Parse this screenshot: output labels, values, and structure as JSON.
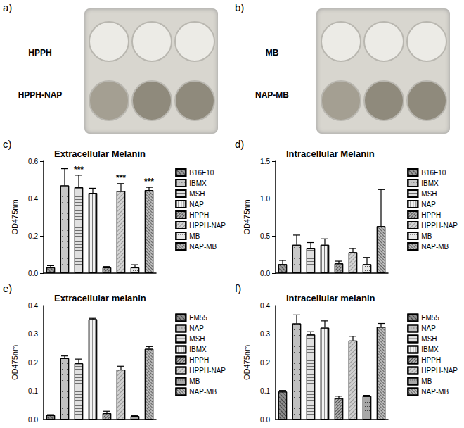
{
  "photos": [
    {
      "panel": "a)",
      "labels": [
        "HPPH",
        "HPPH-NAP"
      ]
    },
    {
      "panel": "b)",
      "labels": [
        "MB",
        "NAP-MB"
      ]
    }
  ],
  "chart_data": [
    {
      "panel": "c)",
      "type": "bar",
      "title": "Extracellular Melanin",
      "y_label": "OD475nm",
      "categories": [
        "B16F10",
        "IBMX",
        "MSH",
        "NAP",
        "HPPH",
        "HPPH-NAP",
        "MB",
        "NAP-MB"
      ],
      "values": [
        0.03,
        0.47,
        0.46,
        0.43,
        0.03,
        0.44,
        0.03,
        0.445
      ],
      "errors": [
        0.01,
        0.09,
        0.065,
        0.025,
        0.005,
        0.04,
        0.015,
        0.015
      ],
      "colors": [
        "#9a9a9a",
        "#c8c8c8",
        "#e0e0e0",
        "#f2f2f2",
        "#b0b0b0",
        "#d4d4d4",
        "#e8e8e8",
        "#bcbcbc"
      ],
      "ylim": [
        0,
        0.6
      ],
      "yticks": [
        {
          "value": 0,
          "label": "0.0"
        },
        0.2,
        0.4,
        0.6
      ],
      "tick_labels": "y",
      "legend": "right",
      "annotations": [
        {
          "category": "MSH",
          "text": "***"
        },
        {
          "category": "HPPH-NAP",
          "text": "***"
        },
        {
          "category": "NAP-MB",
          "text": "***"
        }
      ]
    },
    {
      "panel": "d)",
      "type": "bar",
      "title": "Intracellular Melanin",
      "y_label": "OD475nm",
      "categories": [
        "B16F10",
        "IBMX",
        "MSH",
        "NAP",
        "HPPH",
        "HPPH-NAP",
        "MB",
        "NAP-MB"
      ],
      "values": [
        0.12,
        0.38,
        0.33,
        0.38,
        0.13,
        0.28,
        0.12,
        0.63
      ],
      "errors": [
        0.05,
        0.13,
        0.08,
        0.08,
        0.03,
        0.05,
        0.09,
        0.49
      ],
      "colors": [
        "#9a9a9a",
        "#c8c8c8",
        "#e0e0e0",
        "#f2f2f2",
        "#b0b0b0",
        "#d4d4d4",
        "#e8e8e8",
        "#bcbcbc"
      ],
      "ylim": [
        0,
        1.5
      ],
      "yticks": [
        {
          "value": 0,
          "label": "0.0"
        },
        0.5,
        {
          "value": 1,
          "label": "1.0"
        },
        1.5
      ],
      "tick_labels": "y",
      "legend": "right"
    },
    {
      "panel": "e)",
      "type": "bar",
      "title": "Extracellular melanin",
      "y_label": "OD475nm",
      "categories": [
        "FM55",
        "NAP",
        "MSH",
        "IBMX",
        "HPPH",
        "HPPH-NAP",
        "MB",
        "NAP-MB"
      ],
      "values": [
        0.015,
        0.215,
        0.197,
        0.352,
        0.022,
        0.175,
        0.012,
        0.248
      ],
      "errors": [
        0.002,
        0.008,
        0.015,
        0.003,
        0.007,
        0.012,
        0.002,
        0.008
      ],
      "colors": [
        "#8c8c8c",
        "#c0c0c0",
        "#e0e0e0",
        "#f2f2f2",
        "#b0b0b0",
        "#d0d0d0",
        "#a8a8a8",
        "#bcbcbc"
      ],
      "ylim": [
        0,
        0.4
      ],
      "yticks": [
        {
          "value": 0,
          "label": "0.0"
        },
        0.1,
        0.2,
        0.3,
        0.4
      ],
      "tick_labels": "y",
      "legend": "right"
    },
    {
      "panel": "f)",
      "type": "bar",
      "title": "Intracellular melanin",
      "y_label": "OD475nm",
      "categories": [
        "FM55",
        "NAP",
        "MSH",
        "IBMX",
        "HPPH",
        "HPPH-NAP",
        "MB",
        "NAP-MB"
      ],
      "values": [
        0.098,
        0.337,
        0.298,
        0.322,
        0.075,
        0.277,
        0.082,
        0.325
      ],
      "errors": [
        0.004,
        0.03,
        0.01,
        0.024,
        0.007,
        0.015,
        0.003,
        0.012
      ],
      "colors": [
        "#8c8c8c",
        "#c0c0c0",
        "#e0e0e0",
        "#f2f2f2",
        "#b0b0b0",
        "#d0d0d0",
        "#a8a8a8",
        "#bcbcbc"
      ],
      "ylim": [
        0,
        0.4
      ],
      "yticks": [
        {
          "value": 0,
          "label": "0.0"
        },
        0.1,
        0.2,
        0.3,
        0.4
      ],
      "tick_labels": "y",
      "legend": "right"
    }
  ]
}
